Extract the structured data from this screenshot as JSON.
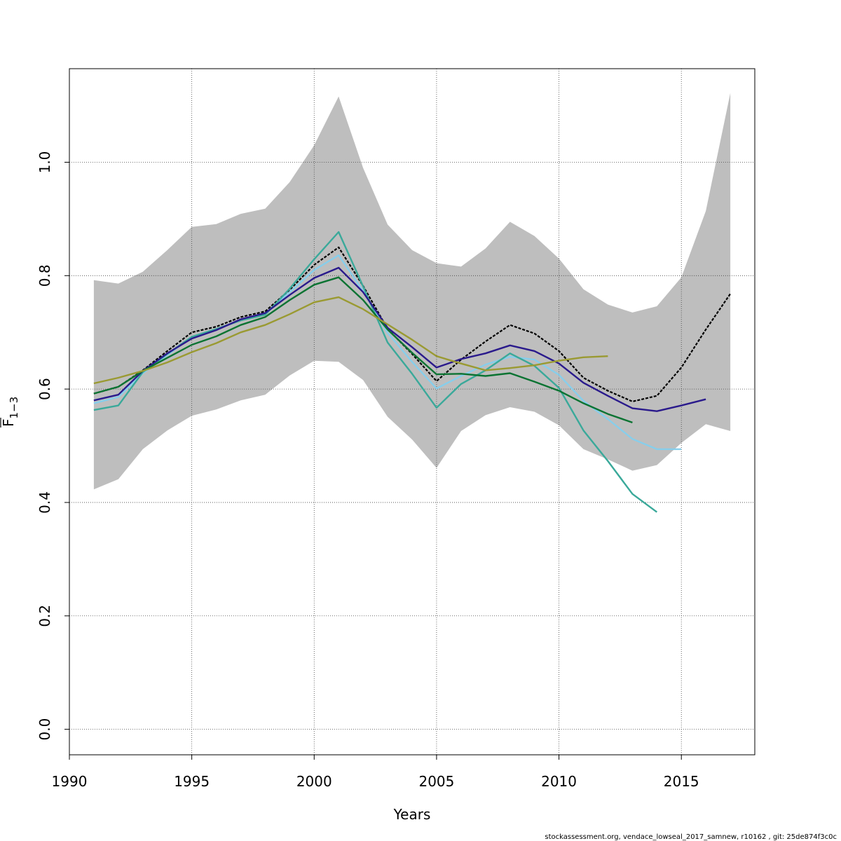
{
  "chart_data": {
    "type": "line",
    "xlabel": "Years",
    "ylabel": "F",
    "ylabel_sub": "1−3",
    "xlim": [
      1990,
      2018
    ],
    "ylim": [
      -0.045,
      1.165
    ],
    "xticks": [
      1990,
      1995,
      2000,
      2005,
      2010,
      2015
    ],
    "xtick_labels": [
      "1990",
      "1995",
      "2000",
      "2005",
      "2010",
      "2015"
    ],
    "yticks": [
      0.0,
      0.2,
      0.4,
      0.6,
      0.8,
      1.0
    ],
    "ytick_labels": [
      "0.0",
      "0.2",
      "0.4",
      "0.6",
      "0.8",
      "1.0"
    ],
    "grid": true,
    "band": {
      "color": "#bebebe",
      "x": [
        1991,
        1992,
        1993,
        1994,
        1995,
        1996,
        1997,
        1998,
        1999,
        2000,
        2001,
        2002,
        2003,
        2004,
        2005,
        2006,
        2007,
        2008,
        2009,
        2010,
        2011,
        2012,
        2013,
        2014,
        2015,
        2016,
        2017
      ],
      "upper": [
        0.792,
        0.786,
        0.807,
        0.845,
        0.886,
        0.891,
        0.909,
        0.918,
        0.965,
        1.03,
        1.116,
        0.99,
        0.89,
        0.845,
        0.822,
        0.816,
        0.848,
        0.895,
        0.87,
        0.83,
        0.776,
        0.749,
        0.735,
        0.746,
        0.797,
        0.914,
        1.122
      ],
      "lower": [
        0.423,
        0.441,
        0.494,
        0.527,
        0.553,
        0.564,
        0.58,
        0.59,
        0.624,
        0.65,
        0.648,
        0.616,
        0.551,
        0.511,
        0.461,
        0.526,
        0.554,
        0.568,
        0.56,
        0.536,
        0.494,
        0.476,
        0.456,
        0.466,
        0.505,
        0.538,
        0.526
      ]
    },
    "series": [
      {
        "color": "#000000",
        "dashed": true,
        "x": [
          1991,
          1992,
          1993,
          1994,
          1995,
          1996,
          1997,
          1998,
          1999,
          2000,
          2001,
          2002,
          2003,
          2004,
          2005,
          2006,
          2007,
          2008,
          2009,
          2010,
          2011,
          2012,
          2013,
          2014,
          2015,
          2016,
          2017
        ],
        "values": [
          0.592,
          0.604,
          0.633,
          0.667,
          0.7,
          0.71,
          0.727,
          0.737,
          0.775,
          0.819,
          0.85,
          0.782,
          0.706,
          0.662,
          0.614,
          0.652,
          0.684,
          0.713,
          0.698,
          0.667,
          0.62,
          0.597,
          0.578,
          0.588,
          0.638,
          0.705,
          0.768
        ]
      },
      {
        "color": "#87ceeb",
        "dashed": false,
        "x": [
          1991,
          1992,
          1993,
          1994,
          1995,
          1996,
          1997,
          1998,
          1999,
          2000,
          2001,
          2002,
          2003,
          2004,
          2005,
          2006,
          2007,
          2008,
          2009,
          2010,
          2011,
          2012,
          2013,
          2014,
          2015
        ],
        "values": [
          0.575,
          0.586,
          0.628,
          0.66,
          0.692,
          0.705,
          0.722,
          0.733,
          0.771,
          0.81,
          0.836,
          0.773,
          0.699,
          0.648,
          0.601,
          0.623,
          0.643,
          0.657,
          0.652,
          0.625,
          0.579,
          0.547,
          0.512,
          0.494,
          0.494
        ]
      },
      {
        "color": "#3aa99a",
        "dashed": false,
        "x": [
          1991,
          1992,
          1993,
          1994,
          1995,
          1996,
          1997,
          1998,
          1999,
          2000,
          2001,
          2002,
          2003,
          2004,
          2005,
          2006,
          2007,
          2008,
          2009,
          2010,
          2011,
          2012,
          2013,
          2014
        ],
        "values": [
          0.563,
          0.571,
          0.63,
          0.662,
          0.692,
          0.706,
          0.721,
          0.731,
          0.777,
          0.829,
          0.877,
          0.781,
          0.682,
          0.627,
          0.567,
          0.609,
          0.633,
          0.663,
          0.641,
          0.602,
          0.527,
          0.473,
          0.415,
          0.383
        ]
      },
      {
        "color": "#2a1a8c",
        "dashed": false,
        "x": [
          1991,
          1992,
          1993,
          1994,
          1995,
          1996,
          1997,
          1998,
          1999,
          2000,
          2001,
          2002,
          2003,
          2004,
          2005,
          2006,
          2007,
          2008,
          2009,
          2010,
          2011,
          2012,
          2013,
          2014,
          2015,
          2016
        ],
        "values": [
          0.58,
          0.59,
          0.632,
          0.663,
          0.689,
          0.704,
          0.723,
          0.734,
          0.766,
          0.796,
          0.814,
          0.771,
          0.708,
          0.674,
          0.638,
          0.653,
          0.663,
          0.677,
          0.667,
          0.645,
          0.611,
          0.588,
          0.566,
          0.561,
          0.571,
          0.582
        ]
      },
      {
        "color": "#0b7332",
        "dashed": false,
        "x": [
          1991,
          1992,
          1993,
          1994,
          1995,
          1996,
          1997,
          1998,
          1999,
          2000,
          2001,
          2002,
          2003,
          2004,
          2005,
          2006,
          2007,
          2008,
          2009,
          2010,
          2011,
          2012,
          2013
        ],
        "values": [
          0.592,
          0.604,
          0.632,
          0.655,
          0.678,
          0.693,
          0.713,
          0.727,
          0.757,
          0.784,
          0.797,
          0.757,
          0.705,
          0.664,
          0.626,
          0.627,
          0.623,
          0.628,
          0.613,
          0.597,
          0.575,
          0.556,
          0.541
        ]
      },
      {
        "color": "#9a9a32",
        "dashed": false,
        "x": [
          1991,
          1992,
          1993,
          1994,
          1995,
          1996,
          1997,
          1998,
          1999,
          2000,
          2001,
          2002,
          2003,
          2004,
          2005,
          2006,
          2007,
          2008,
          2009,
          2010,
          2011,
          2012
        ],
        "values": [
          0.61,
          0.62,
          0.632,
          0.647,
          0.665,
          0.681,
          0.7,
          0.713,
          0.732,
          0.753,
          0.762,
          0.741,
          0.714,
          0.687,
          0.658,
          0.645,
          0.633,
          0.637,
          0.642,
          0.65,
          0.656,
          0.658
        ]
      }
    ]
  },
  "footer_text": "stockassessment.org, vendace_lowseal_2017_samnew, r10162 , git: 25de874f3c0c"
}
